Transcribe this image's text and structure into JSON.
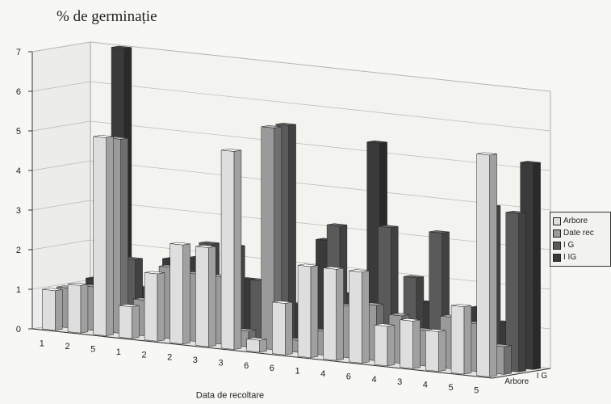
{
  "chart_data": {
    "type": "bar",
    "subtype": "3d-clustered-bar",
    "title": "% de germinație",
    "xlabel": "Data de recoltare",
    "ylabel": "",
    "ylim": [
      0,
      7
    ],
    "y_ticks": [
      0,
      1,
      2,
      3,
      4,
      5,
      6,
      7
    ],
    "grid": true,
    "legend_position": "right",
    "categories": [
      "1",
      "2",
      "5",
      "1",
      "2",
      "2",
      "3",
      "3",
      "6",
      "6",
      "1",
      "4",
      "6",
      "4",
      "3",
      "4",
      "5",
      "5"
    ],
    "depth_axis_labels": [
      "I G",
      "Arbore"
    ],
    "series": [
      {
        "name": "Arbore",
        "color": "#dedede",
        "values": [
          1,
          1.2,
          5,
          0.8,
          1.7,
          2.5,
          2.5,
          5,
          0.3,
          1.3,
          2.3,
          2.3,
          2.3,
          1,
          1.2,
          1,
          1.7,
          5.6
        ]
      },
      {
        "name": "Date rec",
        "color": "#9a9a9a",
        "values": [
          1,
          1.1,
          4.9,
          0.9,
          1.8,
          1.7,
          1.7,
          0.4,
          5.6,
          0.3,
          0.6,
          1.3,
          1.4,
          1.2,
          0.9,
          1.3,
          1.2,
          0.7
        ]
      },
      {
        "name": "I G",
        "color": "#5a5a5a",
        "values": [
          1,
          2,
          1.8,
          0.6,
          1.6,
          2.4,
          2.4,
          1.6,
          5.6,
          0.3,
          3.2,
          1.3,
          3.3,
          2.1,
          3.3,
          1.1,
          4.1,
          4
        ]
      },
      {
        "name": "I IG",
        "color": "#3a3a3a",
        "values": [
          1.1,
          7,
          1,
          1.8,
          1.9,
          1.5,
          1.5,
          2.5,
          1,
          2.7,
          1.4,
          5.3,
          0.8,
          1.4,
          1,
          1.4,
          1.1,
          5.2
        ]
      }
    ]
  }
}
